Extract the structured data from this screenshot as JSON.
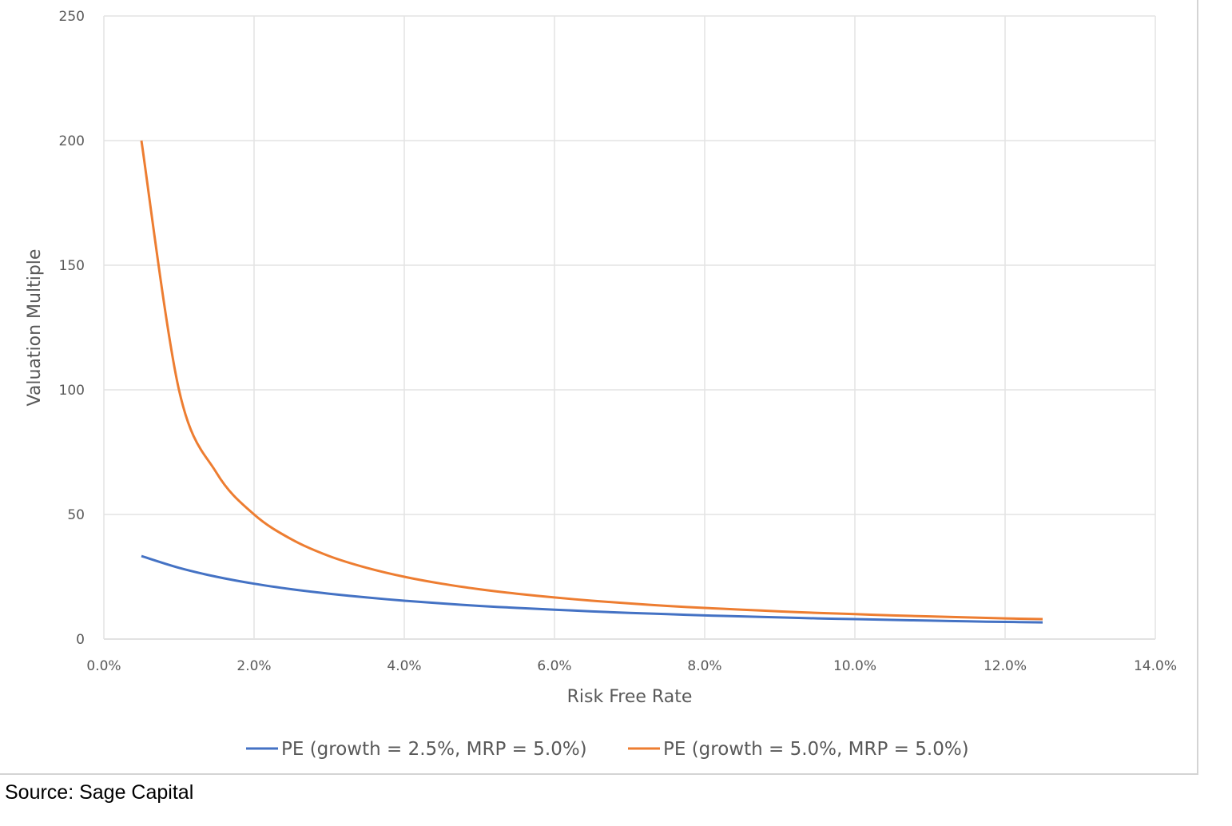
{
  "chart_data": {
    "type": "line",
    "xlabel": "Risk Free Rate",
    "ylabel": "Valuation Multiple",
    "xlim": [
      0,
      14
    ],
    "ylim": [
      0,
      250
    ],
    "x_ticks": [
      "0.0%",
      "2.0%",
      "4.0%",
      "6.0%",
      "8.0%",
      "10.0%",
      "12.0%",
      "14.0%"
    ],
    "y_ticks": [
      "0",
      "50",
      "100",
      "150",
      "200",
      "250"
    ],
    "grid": true,
    "legend_position": "bottom",
    "x": [
      0.5,
      1.0,
      1.5,
      2.0,
      2.5,
      3.0,
      3.5,
      4.0,
      4.5,
      5.0,
      5.5,
      6.0,
      6.5,
      7.0,
      7.5,
      8.0,
      8.5,
      9.0,
      9.5,
      10.0,
      10.5,
      11.0,
      11.5,
      12.0,
      12.5
    ],
    "series": [
      {
        "name": "PE (growth = 2.5%, MRP = 5.0%)",
        "color": "#4472C4",
        "values": [
          33.3,
          28.6,
          25.0,
          22.2,
          20.0,
          18.2,
          16.7,
          15.4,
          14.3,
          13.3,
          12.5,
          11.8,
          11.1,
          10.5,
          10.0,
          9.5,
          9.1,
          8.7,
          8.3,
          8.0,
          7.7,
          7.4,
          7.1,
          6.9,
          6.7
        ]
      },
      {
        "name": "PE (growth = 5.0%, MRP = 5.0%)",
        "color": "#ED7D31",
        "values": [
          200.0,
          100.0,
          66.7,
          50.0,
          40.0,
          33.3,
          28.6,
          25.0,
          22.2,
          20.0,
          18.2,
          16.7,
          15.4,
          14.3,
          13.3,
          12.5,
          11.8,
          11.1,
          10.5,
          10.0,
          9.5,
          9.1,
          8.7,
          8.3,
          8.0
        ]
      }
    ]
  },
  "source": "Source: Sage Capital"
}
